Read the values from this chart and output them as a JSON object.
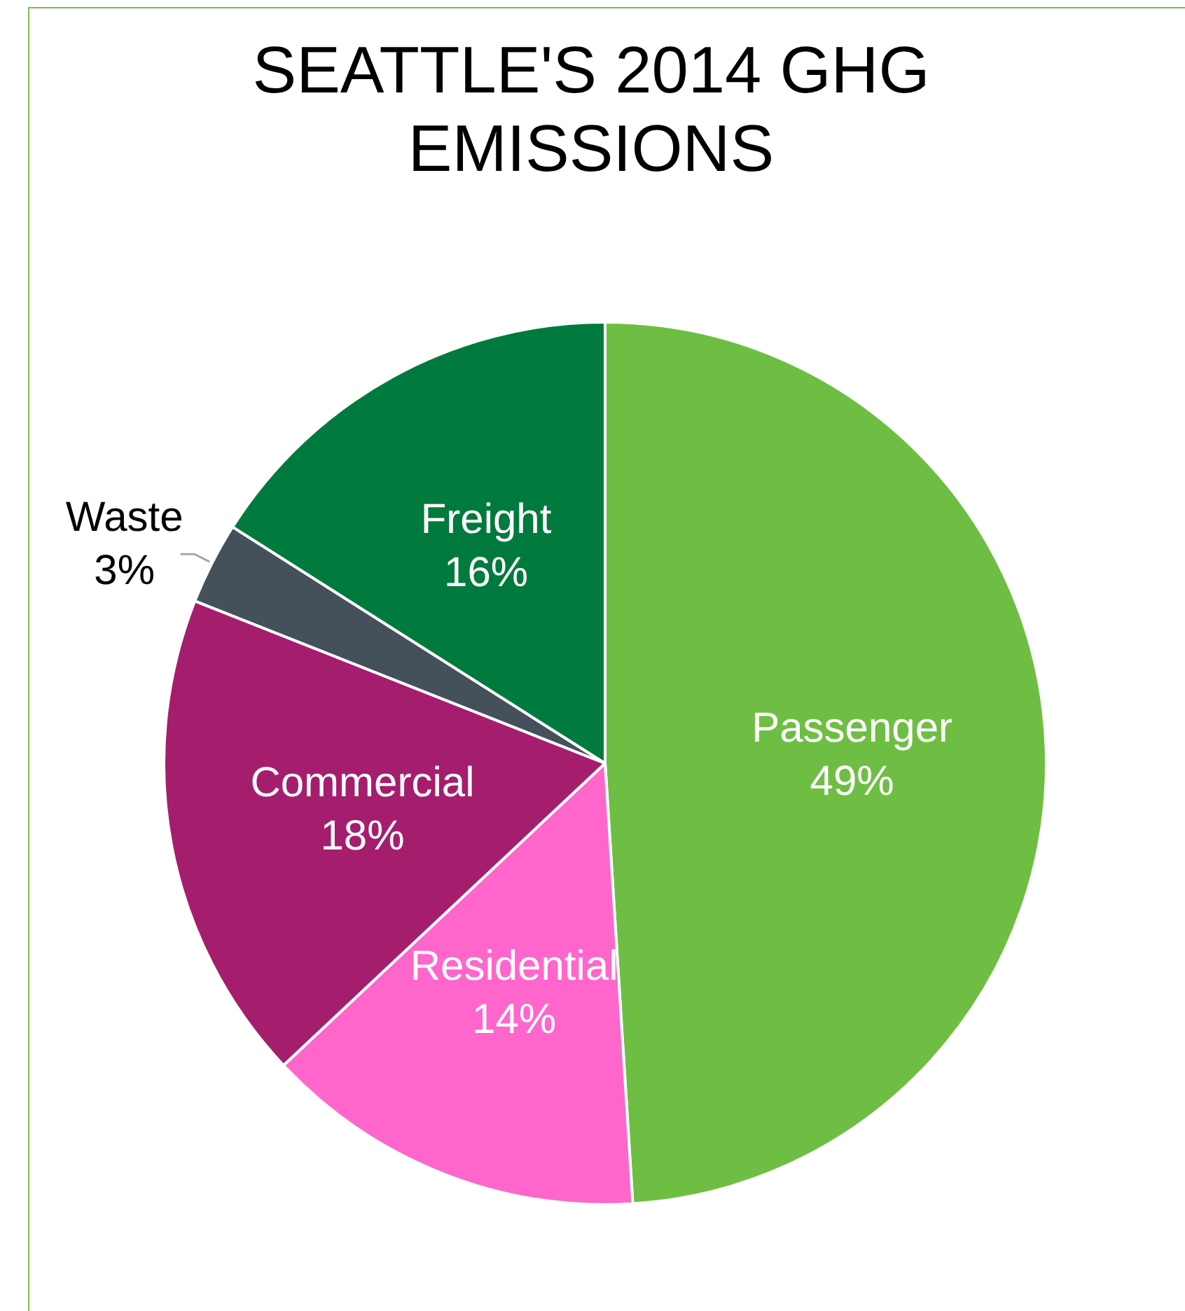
{
  "chart_data": {
    "type": "pie",
    "title": "SEATTLE'S 2014 GHG EMISSIONS",
    "categories": [
      "Passenger",
      "Residential",
      "Commercial",
      "Waste",
      "Freight"
    ],
    "values": [
      49,
      14,
      18,
      3,
      16
    ],
    "value_labels": [
      "49%",
      "14%",
      "18%",
      "3%",
      "16%"
    ],
    "colors": [
      "#6fbe44",
      "#ff66cc",
      "#a51e6e",
      "#44505a",
      "#007a3d"
    ],
    "legend": false
  }
}
